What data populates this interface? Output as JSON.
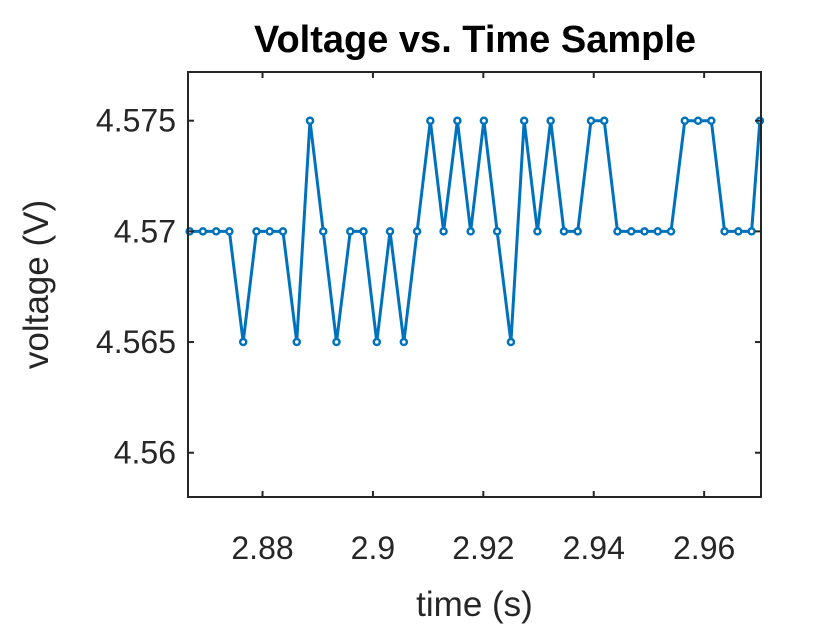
{
  "chart_data": {
    "type": "line",
    "title": "Voltage vs. Time Sample",
    "xlabel": "time (s)",
    "ylabel": "voltage (V)",
    "xlim": [
      2.8665,
      2.9703
    ],
    "ylim": [
      4.558,
      4.5772
    ],
    "xticks": [
      2.88,
      2.9,
      2.92,
      2.94,
      2.96
    ],
    "xtick_labels": [
      "2.88",
      "2.9",
      "2.92",
      "2.94",
      "2.96"
    ],
    "yticks": [
      4.56,
      4.565,
      4.57,
      4.575
    ],
    "ytick_labels": [
      "4.56",
      "4.565",
      "4.57",
      "4.575"
    ],
    "grid": false,
    "marker": "circle",
    "color": "#0072BD",
    "series": [
      {
        "x": [
          2.8668,
          2.8692,
          2.8716,
          2.874,
          2.8765,
          2.8789,
          2.8813,
          2.8837,
          2.8862,
          2.8886,
          2.891,
          2.8934,
          2.8959,
          2.8983,
          2.9007,
          2.9031,
          2.9056,
          2.908,
          2.9104,
          2.9128,
          2.9153,
          2.9177,
          2.9201,
          2.9225,
          2.925,
          2.9274,
          2.9298,
          2.9322,
          2.9346,
          2.9371,
          2.9395,
          2.9419,
          2.9443,
          2.9468,
          2.9492,
          2.9516,
          2.954,
          2.9565,
          2.9589,
          2.9613,
          2.9637,
          2.9662,
          2.9686,
          2.9701
        ],
        "y": [
          4.57,
          4.57,
          4.57,
          4.57,
          4.565,
          4.57,
          4.57,
          4.57,
          4.565,
          4.575,
          4.57,
          4.565,
          4.57,
          4.57,
          4.565,
          4.57,
          4.565,
          4.57,
          4.575,
          4.57,
          4.575,
          4.57,
          4.575,
          4.57,
          4.565,
          4.575,
          4.57,
          4.575,
          4.57,
          4.57,
          4.575,
          4.575,
          4.57,
          4.57,
          4.57,
          4.57,
          4.57,
          4.575,
          4.575,
          4.575,
          4.57,
          4.57,
          4.57,
          4.575
        ]
      }
    ]
  }
}
